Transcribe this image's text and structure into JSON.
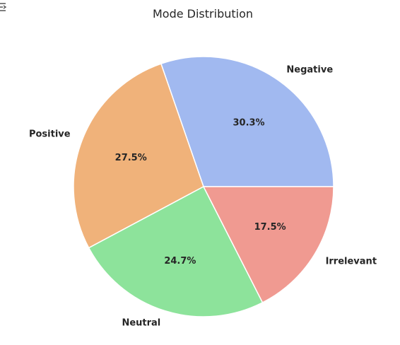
{
  "chart_data": {
    "type": "pie",
    "title": "Mode Distribution",
    "slices": [
      {
        "label": "Negative",
        "value": 30.3,
        "pct_label": "30.3%",
        "color": "#a1b9f0"
      },
      {
        "label": "Positive",
        "value": 27.5,
        "pct_label": "27.5%",
        "color": "#f0b27a"
      },
      {
        "label": "Neutral",
        "value": 24.7,
        "pct_label": "24.7%",
        "color": "#8de39b"
      },
      {
        "label": "Irrelevant",
        "value": 17.5,
        "pct_label": "17.5%",
        "color": "#f09a91"
      }
    ],
    "start_angle_deg": 0,
    "direction": "counterclockwise",
    "legend": "none"
  },
  "corner_icon": "cropped-toolbar-icon"
}
